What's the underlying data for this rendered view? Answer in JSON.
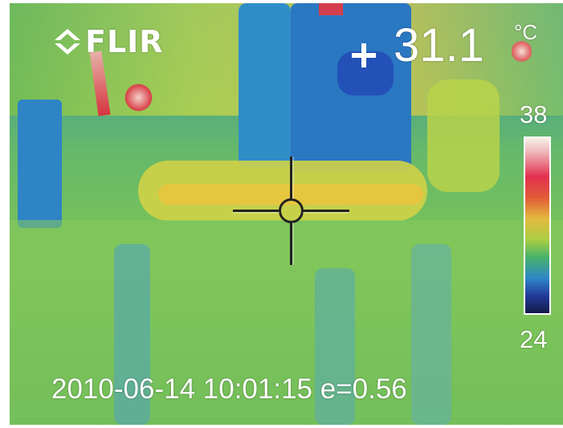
{
  "overlay": {
    "brand": "FLIR",
    "spot_temperature": "31.1",
    "temperature_unit": "°C",
    "scale_max": "38",
    "scale_min": "24",
    "timestamp_line": "2010-06-14 10:01:15 e=0.56"
  },
  "icons": {
    "logo_mark": "flir-logo-icon",
    "spot_marker": "plus-icon",
    "crosshair": "crosshair-icon"
  }
}
